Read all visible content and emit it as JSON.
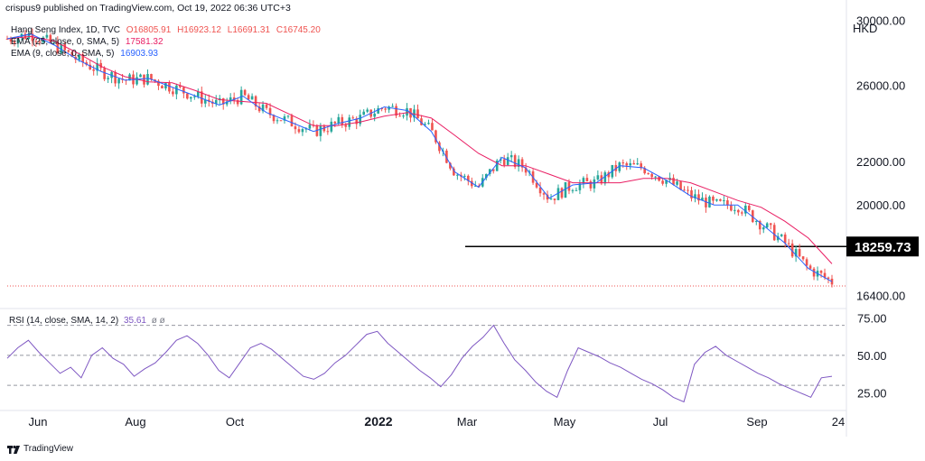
{
  "header": {
    "publisher": "crispus9 published on TradingView.com, Oct 19, 2022 06:36 UTC+3"
  },
  "legend": {
    "symbol": "Hang Seng Index, 1D, TVC",
    "ohlc": {
      "o": "O16805.91",
      "h": "H16923.12",
      "l": "L16691.31",
      "c": "C16745.20"
    },
    "ema25": {
      "label": "EMA (25, close, 0, SMA, 5)",
      "value": "17581.32"
    },
    "ema9": {
      "label": "EMA (9, close, 0, SMA, 5)",
      "value": "16903.93"
    }
  },
  "rsi_legend": {
    "label": "RSI (14, close, SMA, 14, 2)",
    "value": "35.61",
    "extra": "ø ø"
  },
  "currency": "HKD",
  "footer": {
    "brand": "TradingView"
  },
  "colors": {
    "up": "#26a69a",
    "down": "#ef5350",
    "ema25": "#e91e63",
    "ema9": "#2962ff",
    "rsi": "#7e57c2",
    "support": "#000000",
    "price_line": "#ef5350",
    "grid": "#e0e3eb",
    "text": "#131722"
  },
  "chart_data": [
    {
      "type": "candlestick",
      "title": "Hang Seng Index, 1D, TVC",
      "x_ticks": [
        "Jun",
        "Aug",
        "Oct",
        "2022",
        "Mar",
        "May",
        "Jul",
        "Sep",
        "24"
      ],
      "y_ticks": [
        "30000.00",
        "26000.00",
        "22000.00",
        "20000.00",
        "16400.00"
      ],
      "axis_scale": "log",
      "ylim": [
        16000,
        30500
      ],
      "last_price": 16745.2,
      "support_level": {
        "value": "18259.73",
        "from": "2022-03-15",
        "to": "2022-10-19"
      },
      "series": [
        {
          "name": "EMA (25, close, 0, SMA, 5)",
          "values": [
            28800,
            28950,
            28650,
            27900,
            27100,
            26500,
            26200,
            26150,
            25700,
            25200,
            25100,
            25000,
            24400,
            23800,
            23800,
            24000,
            24300,
            24500,
            24200,
            23300,
            22400,
            21800,
            21800,
            21400,
            21000,
            21000,
            21000,
            21200,
            21200,
            21000,
            20600,
            20200,
            19900,
            19300,
            18600,
            17581
          ]
        },
        {
          "name": "EMA (9, close, 0, SMA, 5)",
          "values": [
            28800,
            29100,
            28400,
            27500,
            26800,
            26300,
            26400,
            25900,
            25400,
            24900,
            25400,
            24500,
            24000,
            23500,
            23900,
            24200,
            24800,
            24600,
            23500,
            21500,
            20800,
            22200,
            21700,
            20300,
            20900,
            21000,
            21800,
            21700,
            21100,
            20400,
            20000,
            20000,
            19200,
            18400,
            17400,
            16904
          ]
        }
      ]
    },
    {
      "type": "line",
      "title": "RSI (14, close, SMA, 14, 2)",
      "y_ticks": [
        "75.00",
        "50.00",
        "25.00"
      ],
      "ylim": [
        15,
        80
      ],
      "levels": [
        70,
        50,
        30
      ],
      "series": [
        {
          "name": "RSI",
          "values": [
            48,
            55,
            60,
            52,
            45,
            38,
            42,
            35,
            50,
            55,
            48,
            44,
            36,
            41,
            45,
            52,
            60,
            63,
            58,
            50,
            40,
            35,
            45,
            55,
            58,
            54,
            48,
            42,
            36,
            34,
            38,
            45,
            50,
            57,
            64,
            66,
            58,
            52,
            46,
            40,
            35,
            29,
            37,
            48,
            56,
            62,
            70,
            58,
            47,
            40,
            32,
            26,
            22,
            40,
            55,
            52,
            49,
            45,
            42,
            38,
            34,
            31,
            27,
            22,
            19,
            44,
            52,
            56,
            50,
            46,
            42,
            38,
            35,
            31,
            28,
            25,
            22,
            35,
            36
          ]
        }
      ]
    }
  ]
}
